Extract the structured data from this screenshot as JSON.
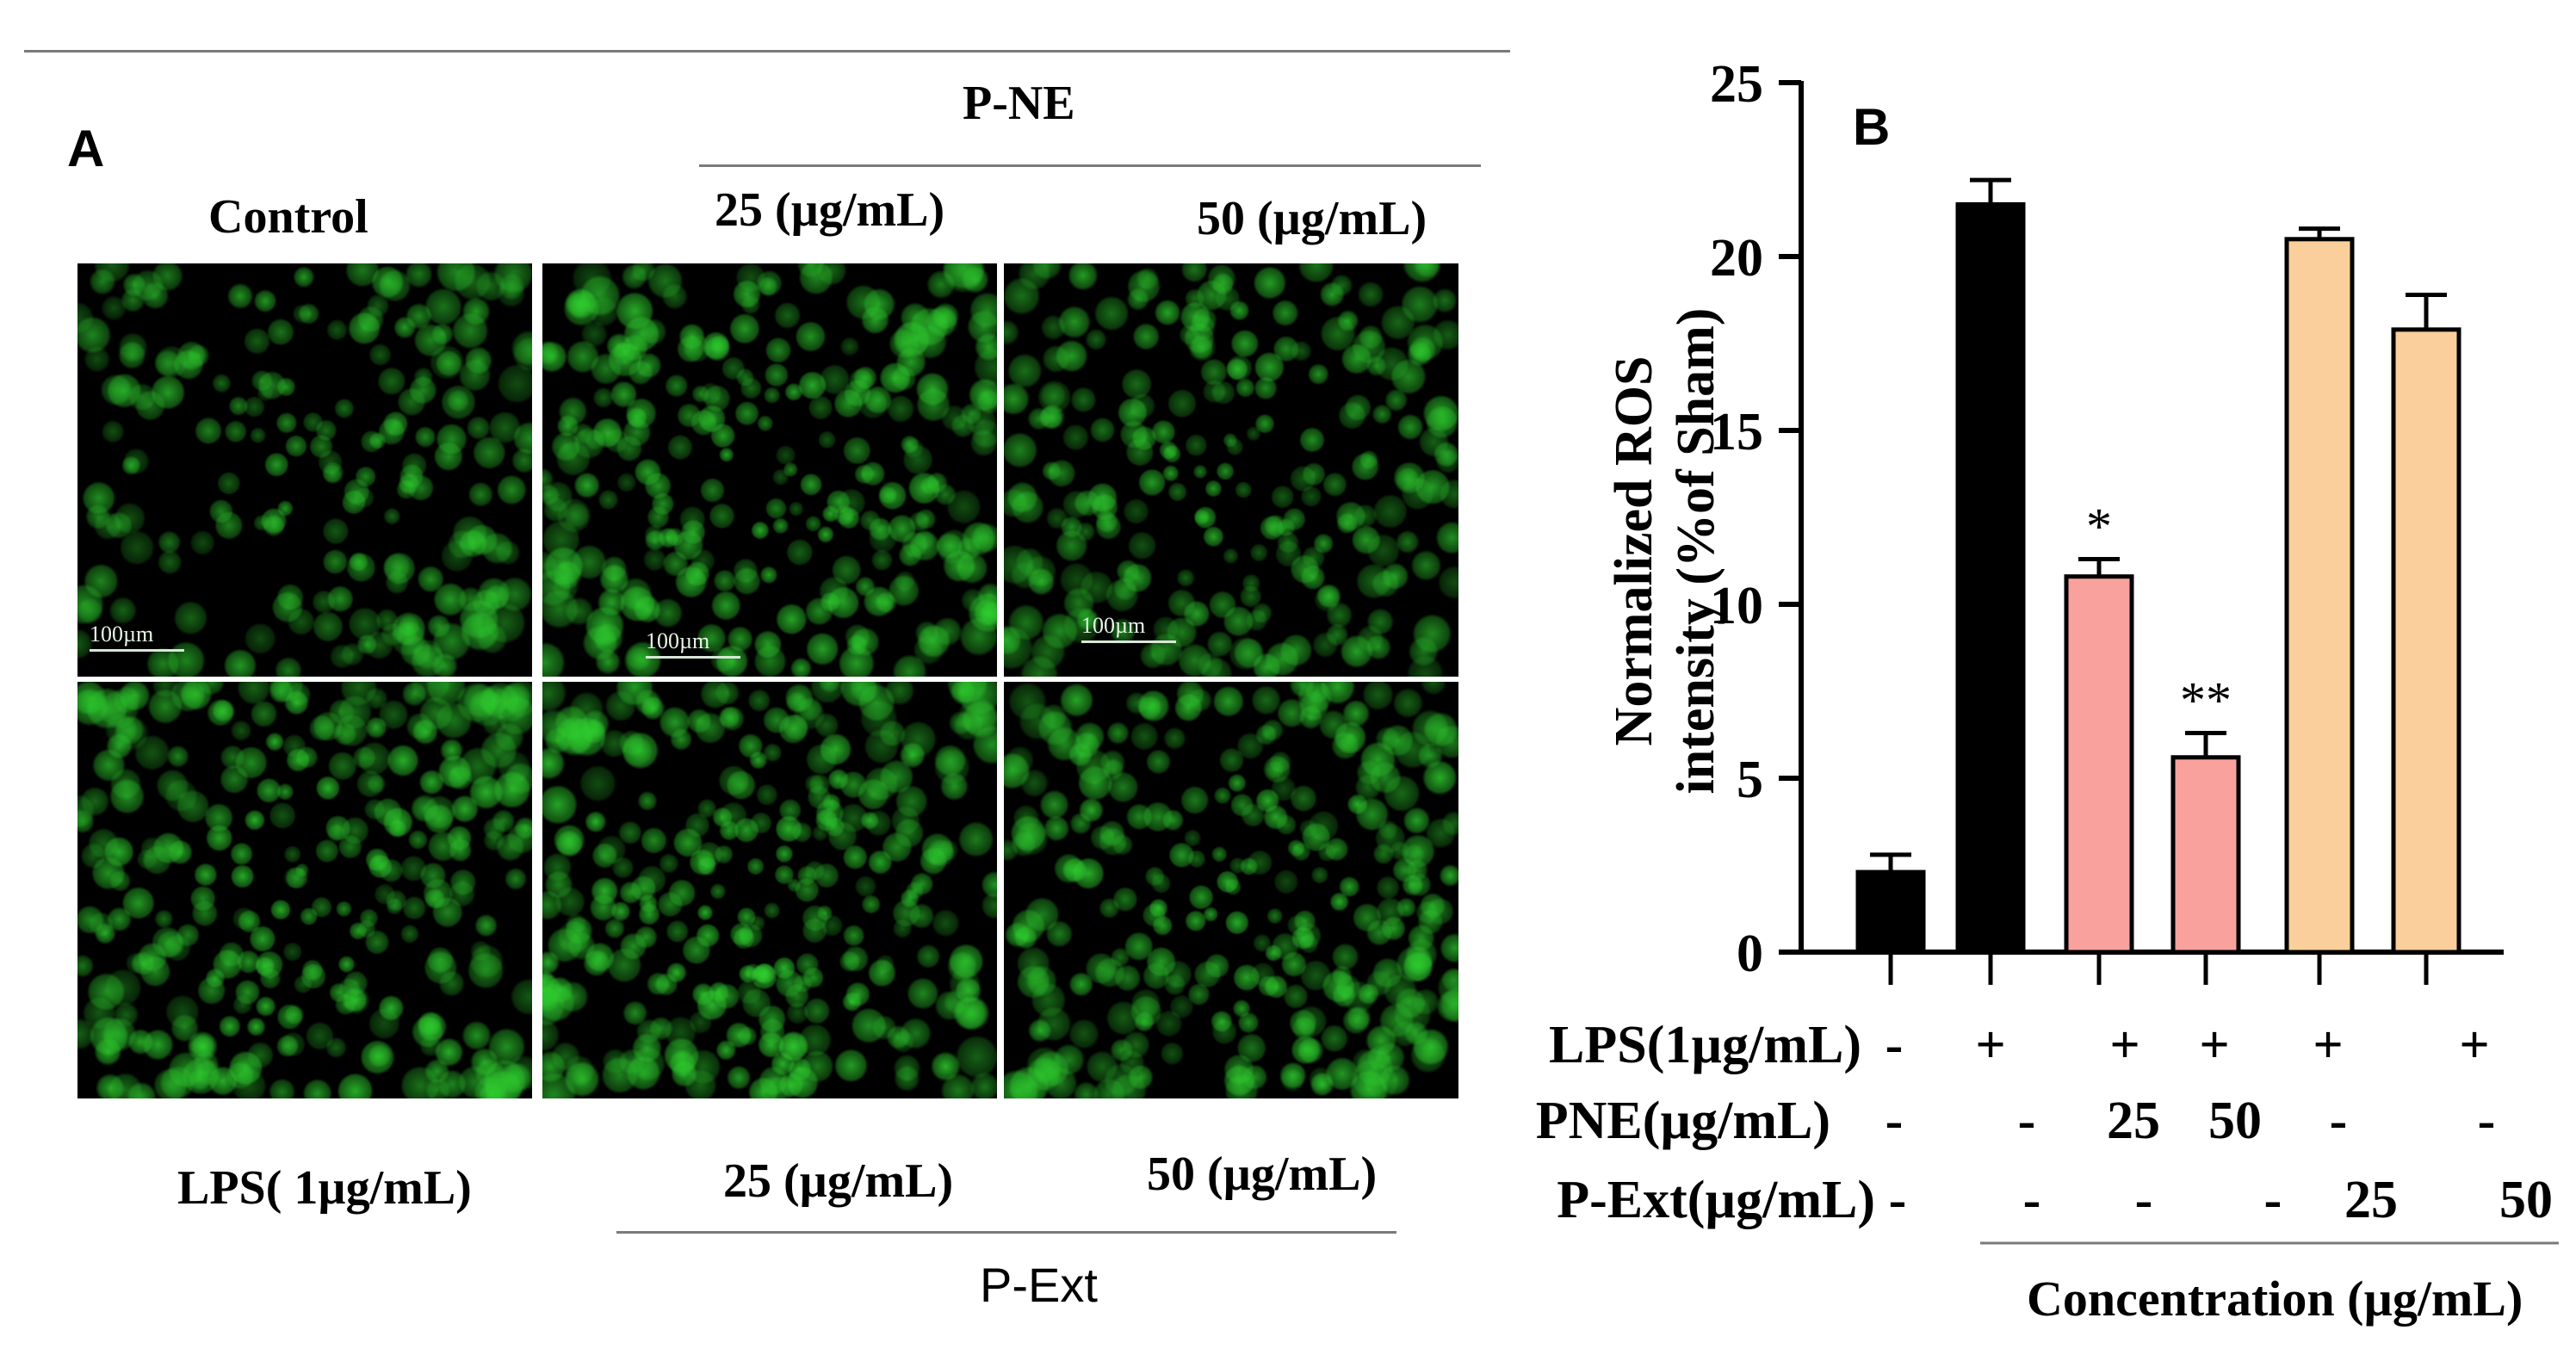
{
  "panel_a": {
    "label": "A",
    "top_group_label": "P-NE",
    "bottom_group_label": "P-Ext",
    "top_labels": [
      "Control",
      "25 (µg/mL)",
      "50 (µg/mL)"
    ],
    "bottom_labels": [
      "LPS( 1µg/mL)",
      "25 (µg/mL)",
      "50 (µg/mL)"
    ],
    "scale_bar_label": "100µm",
    "images": [
      {
        "row": 0,
        "col": 0,
        "density": 0.45
      },
      {
        "row": 0,
        "col": 1,
        "density": 0.85
      },
      {
        "row": 0,
        "col": 2,
        "density": 0.65
      },
      {
        "row": 1,
        "col": 0,
        "density": 0.95
      },
      {
        "row": 1,
        "col": 1,
        "density": 1.0
      },
      {
        "row": 1,
        "col": 2,
        "density": 0.95
      }
    ],
    "colors": {
      "fluorescence": "#2fd12f",
      "background": "#000000"
    }
  },
  "panel_b": {
    "label": "B",
    "conditions": {
      "rows": [
        {
          "label": "LPS(1µg/mL)",
          "values": [
            "-",
            "+",
            "+",
            "+",
            "+",
            "+"
          ]
        },
        {
          "label": "PNE(µg/mL)",
          "values": [
            "-",
            "-",
            "25",
            "50",
            "-",
            "-"
          ]
        },
        {
          "label": "P-Ext(µg/mL)",
          "values": [
            "-",
            "-",
            "-",
            "-",
            "25",
            "50"
          ]
        }
      ],
      "extra_p_ext_dash": "-",
      "footer": "Concentration (µg/mL)"
    }
  },
  "chart_data": {
    "type": "bar",
    "ylabel_line1": "Normalized ROS",
    "ylabel_line2": "intensity (%of Sham)",
    "ylim": [
      0,
      25
    ],
    "yticks": [
      0,
      5,
      10,
      15,
      20,
      25
    ],
    "values": [
      2.3,
      21.5,
      10.8,
      5.6,
      20.5,
      17.9
    ],
    "errors": [
      0.5,
      0.7,
      0.5,
      0.7,
      0.3,
      1.0
    ],
    "annotations": [
      "",
      "",
      "*",
      "**",
      "",
      ""
    ],
    "colors": [
      "#000000",
      "#000000",
      "#f9a19c",
      "#f9a19c",
      "#fbcf9b",
      "#fbcf9b"
    ]
  }
}
